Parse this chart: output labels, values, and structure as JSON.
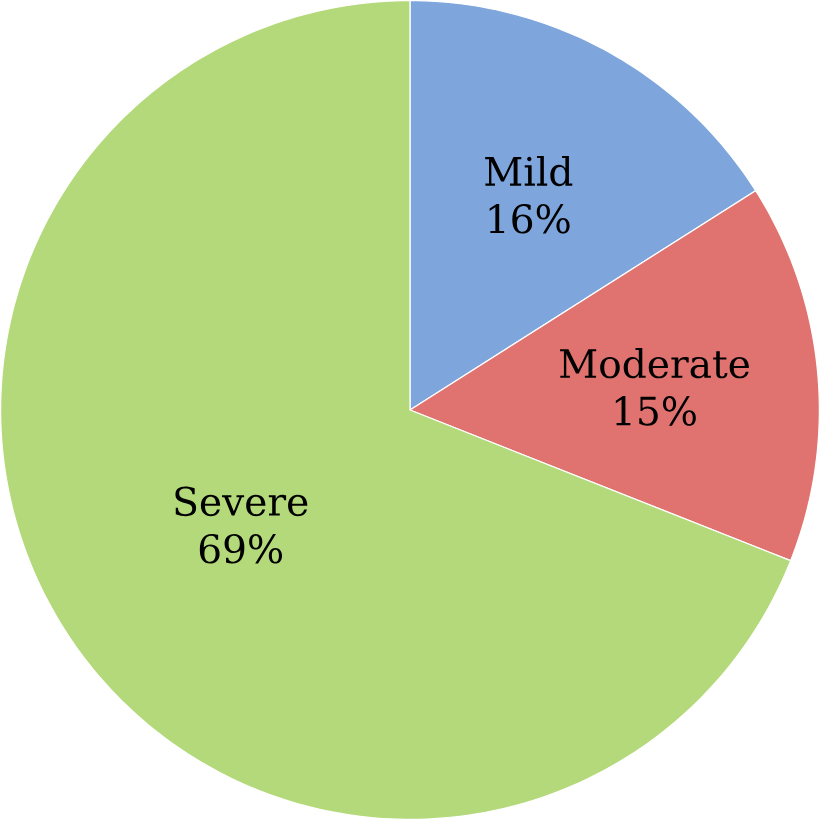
{
  "chart_data": {
    "type": "pie",
    "categories": [
      "Mild",
      "Moderate",
      "Severe"
    ],
    "values": [
      16,
      15,
      69
    ],
    "value_labels": [
      "16%",
      "15%",
      "69%"
    ],
    "colors": [
      "#7ea6dc",
      "#e0736f",
      "#b3d97a"
    ]
  }
}
